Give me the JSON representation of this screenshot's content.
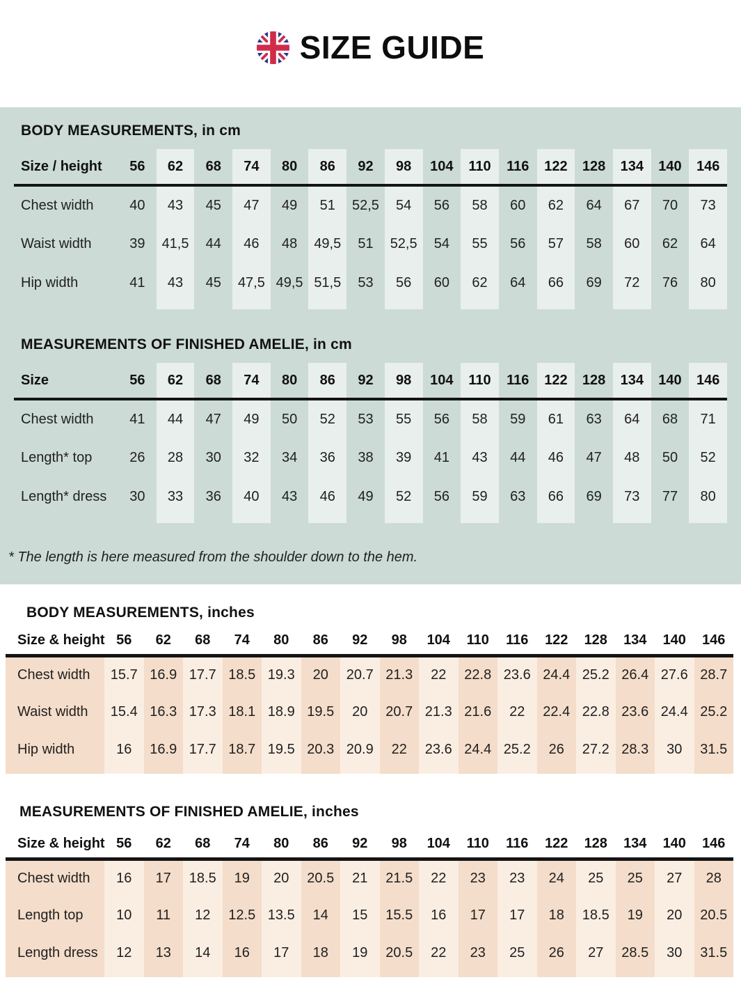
{
  "header": {
    "title": "SIZE GUIDE",
    "flag_icon": "uk-flag-icon"
  },
  "colors": {
    "teal_bg": "#ccdbd6",
    "teal_stripe": "#e9efec",
    "peach_dark": "#f4ddca",
    "peach_light": "#faeee3",
    "flag_blue": "#283a8d",
    "flag_red": "#d02c4a",
    "ink": "#1c1c1c"
  },
  "cm_section": {
    "footnote": "* The length is here measured from the shoulder down to the hem."
  },
  "tables": {
    "body_cm": {
      "title": "BODY MEASUREMENTS, in cm",
      "label_header": "Size / height",
      "columns": [
        "56",
        "62",
        "68",
        "74",
        "80",
        "86",
        "92",
        "98",
        "104",
        "110",
        "116",
        "122",
        "128",
        "134",
        "140",
        "146"
      ],
      "rows": [
        {
          "label": "Chest width",
          "values": [
            "40",
            "43",
            "45",
            "47",
            "49",
            "51",
            "52,5",
            "54",
            "56",
            "58",
            "60",
            "62",
            "64",
            "67",
            "70",
            "73"
          ]
        },
        {
          "label": "Waist width",
          "values": [
            "39",
            "41,5",
            "44",
            "46",
            "48",
            "49,5",
            "51",
            "52,5",
            "54",
            "55",
            "56",
            "57",
            "58",
            "60",
            "62",
            "64"
          ]
        },
        {
          "label": "Hip width",
          "values": [
            "41",
            "43",
            "45",
            "47,5",
            "49,5",
            "51,5",
            "53",
            "56",
            "60",
            "62",
            "64",
            "66",
            "69",
            "72",
            "76",
            "80"
          ]
        }
      ]
    },
    "amelie_cm": {
      "title": "MEASUREMENTS OF FINISHED AMELIE, in cm",
      "label_header": "Size",
      "columns": [
        "56",
        "62",
        "68",
        "74",
        "80",
        "86",
        "92",
        "98",
        "104",
        "110",
        "116",
        "122",
        "128",
        "134",
        "140",
        "146"
      ],
      "rows": [
        {
          "label": "Chest width",
          "values": [
            "41",
            "44",
            "47",
            "49",
            "50",
            "52",
            "53",
            "55",
            "56",
            "58",
            "59",
            "61",
            "63",
            "64",
            "68",
            "71"
          ]
        },
        {
          "label": "Length* top",
          "values": [
            "26",
            "28",
            "30",
            "32",
            "34",
            "36",
            "38",
            "39",
            "41",
            "43",
            "44",
            "46",
            "47",
            "48",
            "50",
            "52"
          ]
        },
        {
          "label": "Length* dress",
          "values": [
            "30",
            "33",
            "36",
            "40",
            "43",
            "46",
            "49",
            "52",
            "56",
            "59",
            "63",
            "66",
            "69",
            "73",
            "77",
            "80"
          ]
        }
      ]
    },
    "body_in": {
      "title": "BODY MEASUREMENTS, inches",
      "label_header": "Size & height",
      "columns": [
        "56",
        "62",
        "68",
        "74",
        "80",
        "86",
        "92",
        "98",
        "104",
        "110",
        "116",
        "122",
        "128",
        "134",
        "140",
        "146"
      ],
      "rows": [
        {
          "label": "Chest width",
          "values": [
            "15.7",
            "16.9",
            "17.7",
            "18.5",
            "19.3",
            "20",
            "20.7",
            "21.3",
            "22",
            "22.8",
            "23.6",
            "24.4",
            "25.2",
            "26.4",
            "27.6",
            "28.7"
          ]
        },
        {
          "label": "Waist width",
          "values": [
            "15.4",
            "16.3",
            "17.3",
            "18.1",
            "18.9",
            "19.5",
            "20",
            "20.7",
            "21.3",
            "21.6",
            "22",
            "22.4",
            "22.8",
            "23.6",
            "24.4",
            "25.2"
          ]
        },
        {
          "label": "Hip width",
          "values": [
            "16",
            "16.9",
            "17.7",
            "18.7",
            "19.5",
            "20.3",
            "20.9",
            "22",
            "23.6",
            "24.4",
            "25.2",
            "26",
            "27.2",
            "28.3",
            "30",
            "31.5"
          ]
        }
      ]
    },
    "amelie_in": {
      "title": "MEASUREMENTS OF FINISHED AMELIE, inches",
      "label_header": "Size & height",
      "columns": [
        "56",
        "62",
        "68",
        "74",
        "80",
        "86",
        "92",
        "98",
        "104",
        "110",
        "116",
        "122",
        "128",
        "134",
        "140",
        "146"
      ],
      "rows": [
        {
          "label": "Chest width",
          "values": [
            "16",
            "17",
            "18.5",
            "19",
            "20",
            "20.5",
            "21",
            "21.5",
            "22",
            "23",
            "23",
            "24",
            "25",
            "25",
            "27",
            "28"
          ]
        },
        {
          "label": "Length top",
          "values": [
            "10",
            "11",
            "12",
            "12.5",
            "13.5",
            "14",
            "15",
            "15.5",
            "16",
            "17",
            "17",
            "18",
            "18.5",
            "19",
            "20",
            "20.5"
          ]
        },
        {
          "label": "Length dress",
          "values": [
            "12",
            "13",
            "14",
            "16",
            "17",
            "18",
            "19",
            "20.5",
            "22",
            "23",
            "25",
            "26",
            "27",
            "28.5",
            "30",
            "31.5"
          ]
        }
      ]
    }
  }
}
